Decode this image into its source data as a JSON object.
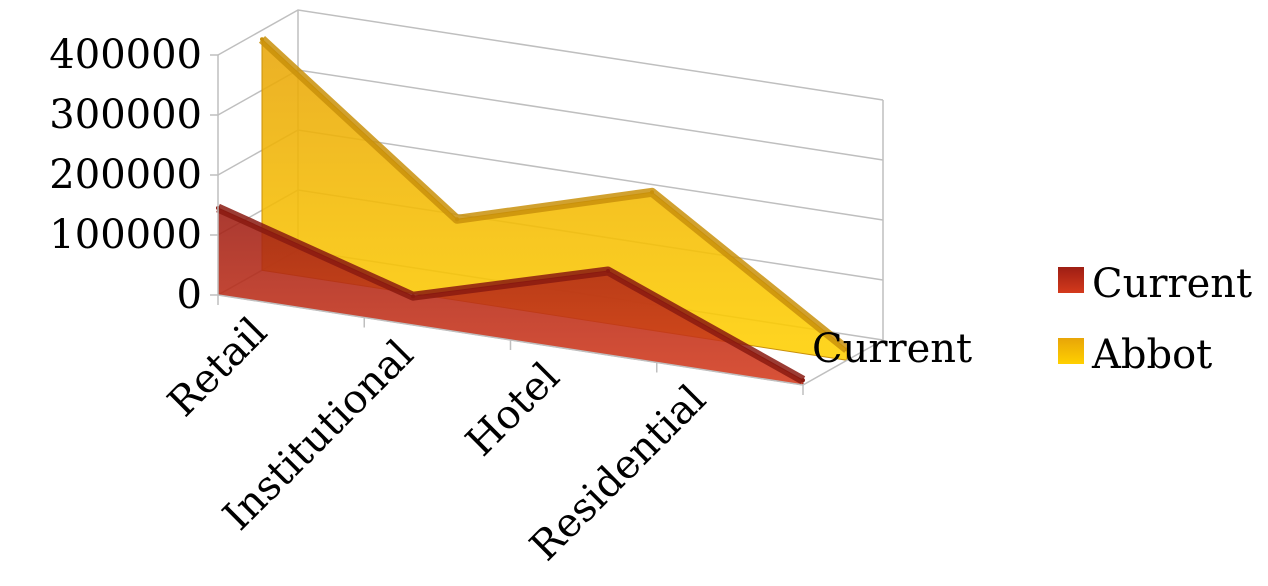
{
  "chart_data": {
    "type": "area",
    "variant": "3d-area",
    "categories": [
      "Retail",
      "Institutional",
      "Hotel",
      "Residential"
    ],
    "series": [
      {
        "name": "Current",
        "values": [
          145000,
          48000,
          140000,
          8000
        ],
        "color": "#B02A18"
      },
      {
        "name": "Abbot",
        "values": [
          385000,
          135000,
          230000,
          18000
        ],
        "color": "#F2B312"
      }
    ],
    "depth_axis_label": "Current",
    "ylim": [
      0,
      400000
    ],
    "yticks": [
      "0",
      "100000",
      "200000",
      "300000",
      "400000"
    ],
    "grid": true,
    "legend_position": "right",
    "legend": [
      "Current",
      "Abbot"
    ]
  }
}
